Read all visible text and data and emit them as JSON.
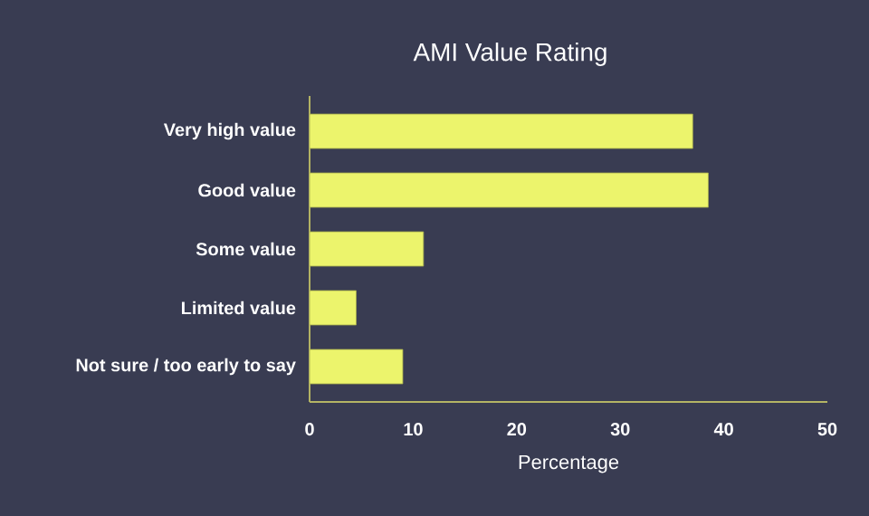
{
  "chart_data": {
    "type": "bar",
    "orientation": "horizontal",
    "title": "AMI Value Rating",
    "xlabel": "Percentage",
    "categories": [
      "Very high value",
      "Good value",
      "Some value",
      "Limited value",
      "Not sure / too early to say"
    ],
    "values": [
      37,
      38.5,
      11,
      4.5,
      9
    ],
    "color": "#ecf46c",
    "xlim": [
      0,
      50
    ],
    "xticks": [
      0,
      10,
      20,
      30,
      40,
      50
    ],
    "grid": false
  }
}
